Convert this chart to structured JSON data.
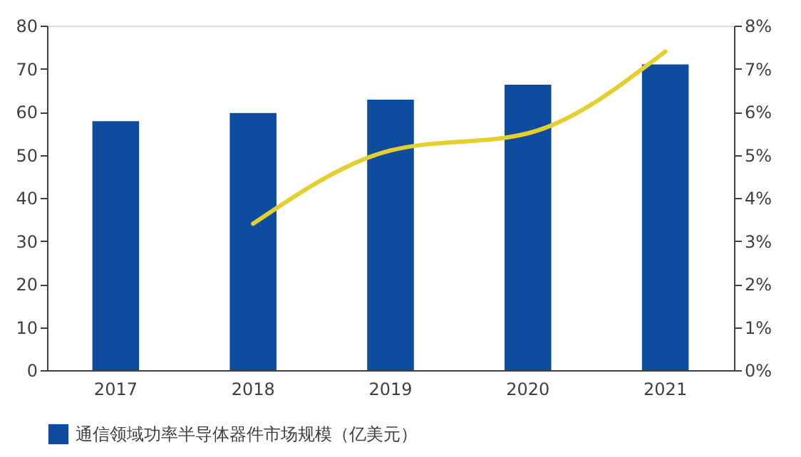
{
  "chart_data": {
    "type": "bar",
    "categories": [
      "2017",
      "2018",
      "2019",
      "2020",
      "2021"
    ],
    "series": [
      {
        "name": "通信领域功率半导体器件市场规模（亿美元）",
        "color": "#0e4c9f",
        "values": [
          57.8,
          59.7,
          62.8,
          66.3,
          71.0
        ]
      },
      {
        "type": "line",
        "axis": "y2",
        "color": "#e3cf2e",
        "values": [
          null,
          3.4,
          5.1,
          5.5,
          7.4
        ]
      }
    ],
    "ylim": [
      0,
      80
    ],
    "yticks": [
      0,
      10,
      20,
      30,
      40,
      50,
      60,
      70,
      80
    ],
    "y2lim": [
      0,
      8
    ],
    "y2ticks": [
      {
        "value": 0,
        "label": "0%"
      },
      {
        "value": 1,
        "label": "1%"
      },
      {
        "value": 2,
        "label": "2%"
      },
      {
        "value": 3,
        "label": "3%"
      },
      {
        "value": 4,
        "label": "4%"
      },
      {
        "value": 5,
        "label": "5%"
      },
      {
        "value": 6,
        "label": "6%"
      },
      {
        "value": 7,
        "label": "7%"
      },
      {
        "value": 8,
        "label": "8%"
      }
    ],
    "grid": false,
    "legend": "bottom"
  }
}
